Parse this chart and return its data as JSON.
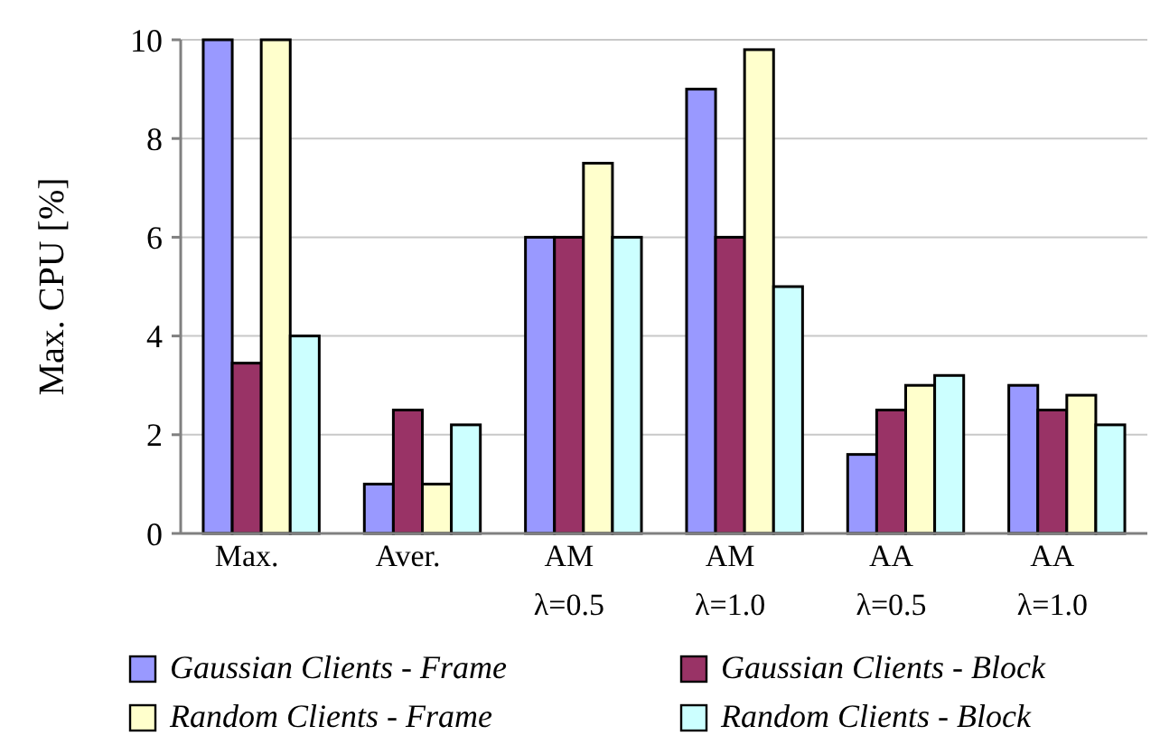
{
  "chart_data": {
    "type": "bar",
    "ylabel": "Max. CPU [%]",
    "categories": [
      "Max.",
      "Aver.",
      "AM\nλ=0.5",
      "AM\nλ=1.0",
      "AA\nλ=0.5",
      "AA\nλ=1.0"
    ],
    "series": [
      {
        "name": "Gaussian Clients - Frame",
        "color": "#9999ff",
        "values": [
          10,
          1,
          6,
          9,
          1.6,
          3
        ]
      },
      {
        "name": "Gaussian Clients - Block",
        "color": "#993366",
        "values": [
          3.45,
          2.5,
          6,
          6,
          2.5,
          2.5
        ]
      },
      {
        "name": "Random Clients - Frame",
        "color": "#ffffcc",
        "values": [
          10,
          1,
          7.5,
          9.8,
          3,
          2.8
        ]
      },
      {
        "name": "Random Clients - Block",
        "color": "#ccffff",
        "values": [
          4,
          2.2,
          6,
          5,
          3.2,
          2.2
        ]
      }
    ],
    "ylim": [
      0,
      10
    ],
    "yticks": [
      0,
      2,
      4,
      6,
      8,
      10
    ],
    "grid": "y",
    "legend": "bottom"
  }
}
